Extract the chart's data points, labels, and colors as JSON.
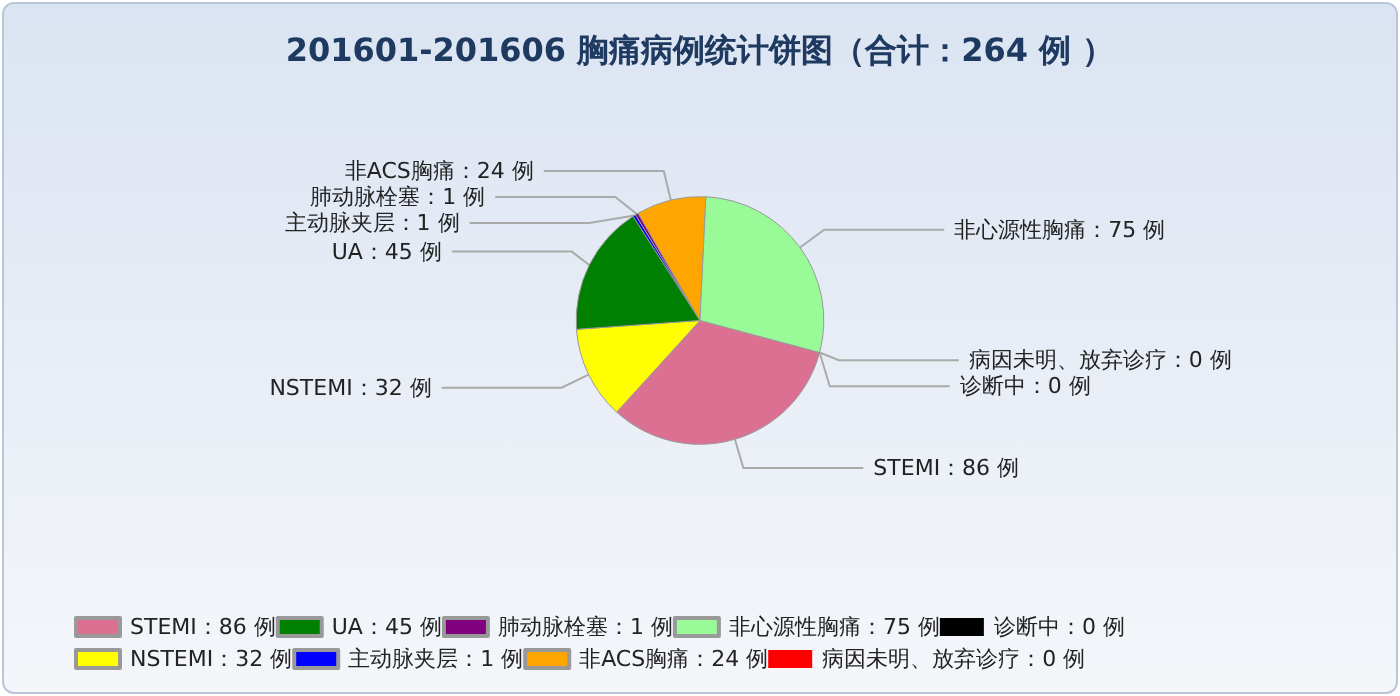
{
  "chart_data": {
    "type": "pie",
    "title": "201601-201606 胸痛病例统计饼图（合计：264 例 ）",
    "categories": [
      "STEMI：86 例",
      "NSTEMI：32 例",
      "UA：45 例",
      "主动脉夹层：1 例",
      "肺动脉栓塞：1 例",
      "非ACS胸痛：24 例",
      "非心源性胸痛：75 例",
      "病因未明、放弃诊疗：0 例",
      "诊断中：0 例"
    ],
    "values": [
      86,
      32,
      45,
      1,
      1,
      24,
      75,
      0,
      0
    ],
    "colors": [
      "#db7093",
      "#ffff00",
      "#008000",
      "#0000ff",
      "#800080",
      "#ffa500",
      "#98fb98",
      "#ff0000",
      "#000000"
    ],
    "legend": "bottom"
  }
}
